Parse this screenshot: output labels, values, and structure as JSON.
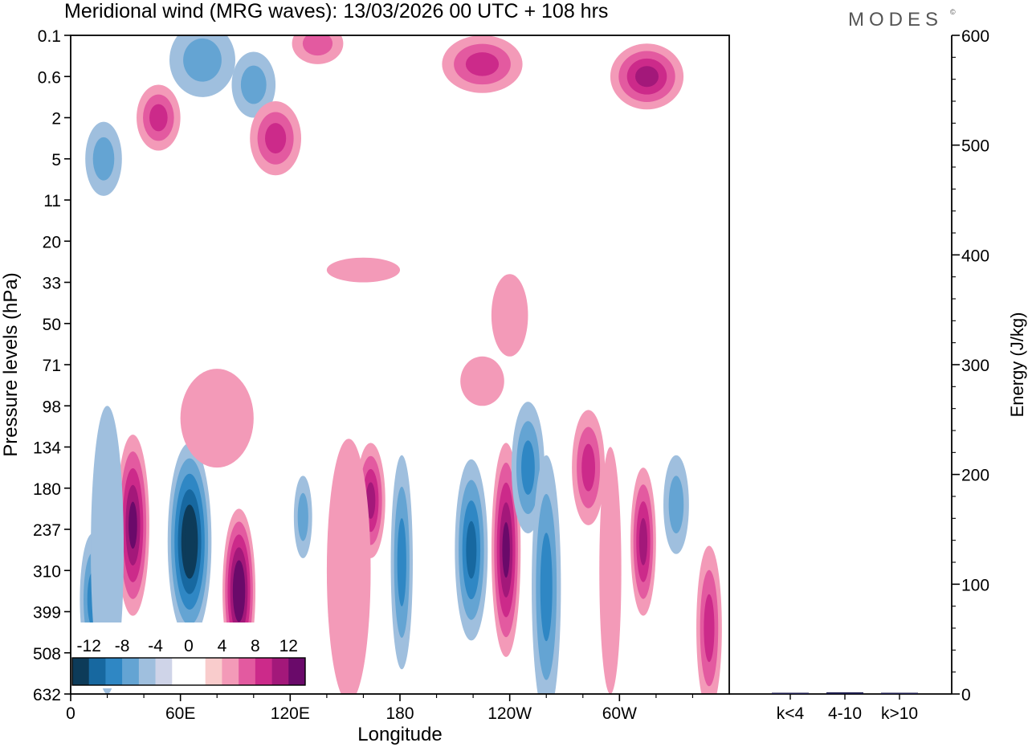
{
  "header": {
    "title": "Meridional wind (MRG waves):  13/03/2026  00 UTC  + 108 hrs",
    "brand": "MODES",
    "brand_mark": "©"
  },
  "colors": {
    "text": "#000000",
    "brand": "#555555",
    "bar": "#1a1a4a",
    "neg": [
      "#0d3b59",
      "#1768a0",
      "#2f87c4",
      "#64a4d3",
      "#9fbfde",
      "#cfd4e8"
    ],
    "neutral": "#ffffff",
    "pos": [
      "#f9cccc",
      "#f39ab8",
      "#e35aa0",
      "#cc2a8a",
      "#a3187a",
      "#6a0a6a"
    ]
  },
  "chart_data": [
    {
      "type": "heatmap",
      "title": "Meridional wind (MRG waves):  13/03/2026  00 UTC  + 108 hrs",
      "xlabel": "Longitude",
      "ylabel": "Pressure levels (hPa)",
      "x_ticks": [
        "0",
        "60E",
        "120E",
        "180",
        "120W",
        "60W"
      ],
      "x_tick_values": [
        0,
        60,
        120,
        180,
        240,
        300
      ],
      "xlim": [
        0,
        360
      ],
      "y_ticks": [
        "0.1",
        "0.6",
        "2",
        "5",
        "11",
        "20",
        "33",
        "50",
        "71",
        "98",
        "134",
        "180",
        "237",
        "310",
        "399",
        "508",
        "632"
      ],
      "colorbar": {
        "tick_labels": [
          "-12",
          "-8",
          "-4",
          "0",
          "4",
          "8",
          "12"
        ],
        "levels": [
          -14,
          -12,
          -10,
          -8,
          -6,
          -4,
          -2,
          2,
          4,
          6,
          8,
          10,
          12,
          14
        ]
      },
      "features": [
        {
          "lon": 34,
          "level_index": 11.9,
          "value": 10,
          "lon_width": 9,
          "level_depth": 2.2
        },
        {
          "lon": 65,
          "level_index": 12.3,
          "value": -12,
          "lon_width": 12,
          "level_depth": 2.4
        },
        {
          "lon": 92,
          "level_index": 13.5,
          "value": 13,
          "lon_width": 9,
          "level_depth": 2.0
        },
        {
          "lon": 12,
          "level_index": 13.7,
          "value": -6,
          "lon_width": 7,
          "level_depth": 1.6
        },
        {
          "lon": 164,
          "level_index": 11.3,
          "value": 8,
          "lon_width": 8,
          "level_depth": 1.4
        },
        {
          "lon": 152,
          "level_index": 13.0,
          "value": 3,
          "lon_width": 12,
          "level_depth": 3.2
        },
        {
          "lon": 127,
          "level_index": 11.7,
          "value": -5,
          "lon_width": 5,
          "level_depth": 1.0
        },
        {
          "lon": 181,
          "level_index": 12.8,
          "value": -6,
          "lon_width": 6,
          "level_depth": 2.6
        },
        {
          "lon": 219,
          "level_index": 12.5,
          "value": -9,
          "lon_width": 9,
          "level_depth": 2.2
        },
        {
          "lon": 238,
          "level_index": 12.5,
          "value": 10,
          "lon_width": 8,
          "level_depth": 2.6
        },
        {
          "lon": 250,
          "level_index": 10.5,
          "value": -7,
          "lon_width": 9,
          "level_depth": 1.6
        },
        {
          "lon": 260,
          "level_index": 13.4,
          "value": -6,
          "lon_width": 8,
          "level_depth": 3.2
        },
        {
          "lon": 283,
          "level_index": 10.5,
          "value": 6,
          "lon_width": 9,
          "level_depth": 1.4
        },
        {
          "lon": 313,
          "level_index": 12.3,
          "value": 9,
          "lon_width": 7,
          "level_depth": 1.8
        },
        {
          "lon": 331,
          "level_index": 11.4,
          "value": -5,
          "lon_width": 7,
          "level_depth": 1.2
        },
        {
          "lon": 349,
          "level_index": 14.4,
          "value": 6,
          "lon_width": 7,
          "level_depth": 2.0
        },
        {
          "lon": 295,
          "level_index": 13.0,
          "value": 3,
          "lon_width": 6,
          "level_depth": 3.0
        },
        {
          "lon": 20,
          "level_index": 12.5,
          "value": -3,
          "lon_width": 9,
          "level_depth": 3.5
        },
        {
          "lon": 80,
          "level_index": 9.3,
          "value": 3,
          "lon_width": 20,
          "level_depth": 1.2
        },
        {
          "lon": 72,
          "level_index": 0.6,
          "value": -5,
          "lon_width": 18,
          "level_depth": 0.9
        },
        {
          "lon": 100,
          "level_index": 1.2,
          "value": -5,
          "lon_width": 12,
          "level_depth": 0.8
        },
        {
          "lon": 48,
          "level_index": 2.0,
          "value": 6,
          "lon_width": 12,
          "level_depth": 0.8
        },
        {
          "lon": 112,
          "level_index": 2.5,
          "value": 7,
          "lon_width": 14,
          "level_depth": 0.9
        },
        {
          "lon": 225,
          "level_index": 0.7,
          "value": 6,
          "lon_width": 22,
          "level_depth": 0.7
        },
        {
          "lon": 315,
          "level_index": 1.0,
          "value": 8,
          "lon_width": 20,
          "level_depth": 0.8
        },
        {
          "lon": 18,
          "level_index": 3.0,
          "value": -5,
          "lon_width": 10,
          "level_depth": 0.9
        },
        {
          "lon": 135,
          "level_index": 0.2,
          "value": 5,
          "lon_width": 14,
          "level_depth": 0.5
        },
        {
          "lon": 240,
          "level_index": 6.8,
          "value": 3,
          "lon_width": 10,
          "level_depth": 1.0
        },
        {
          "lon": 225,
          "level_index": 8.4,
          "value": 3,
          "lon_width": 12,
          "level_depth": 0.6
        },
        {
          "lon": 160,
          "level_index": 5.7,
          "value": 3,
          "lon_width": 20,
          "level_depth": 0.3
        }
      ]
    },
    {
      "type": "bar",
      "title": "",
      "xlabel": "",
      "ylabel": "Energy (J/kg)",
      "categories": [
        "k<4",
        "4-10",
        "k>10"
      ],
      "values": [
        0.3,
        1.5,
        0.2
      ],
      "ylim": [
        0,
        600
      ],
      "y_ticks": [
        "0",
        "100",
        "200",
        "300",
        "400",
        "500",
        "600"
      ]
    }
  ]
}
